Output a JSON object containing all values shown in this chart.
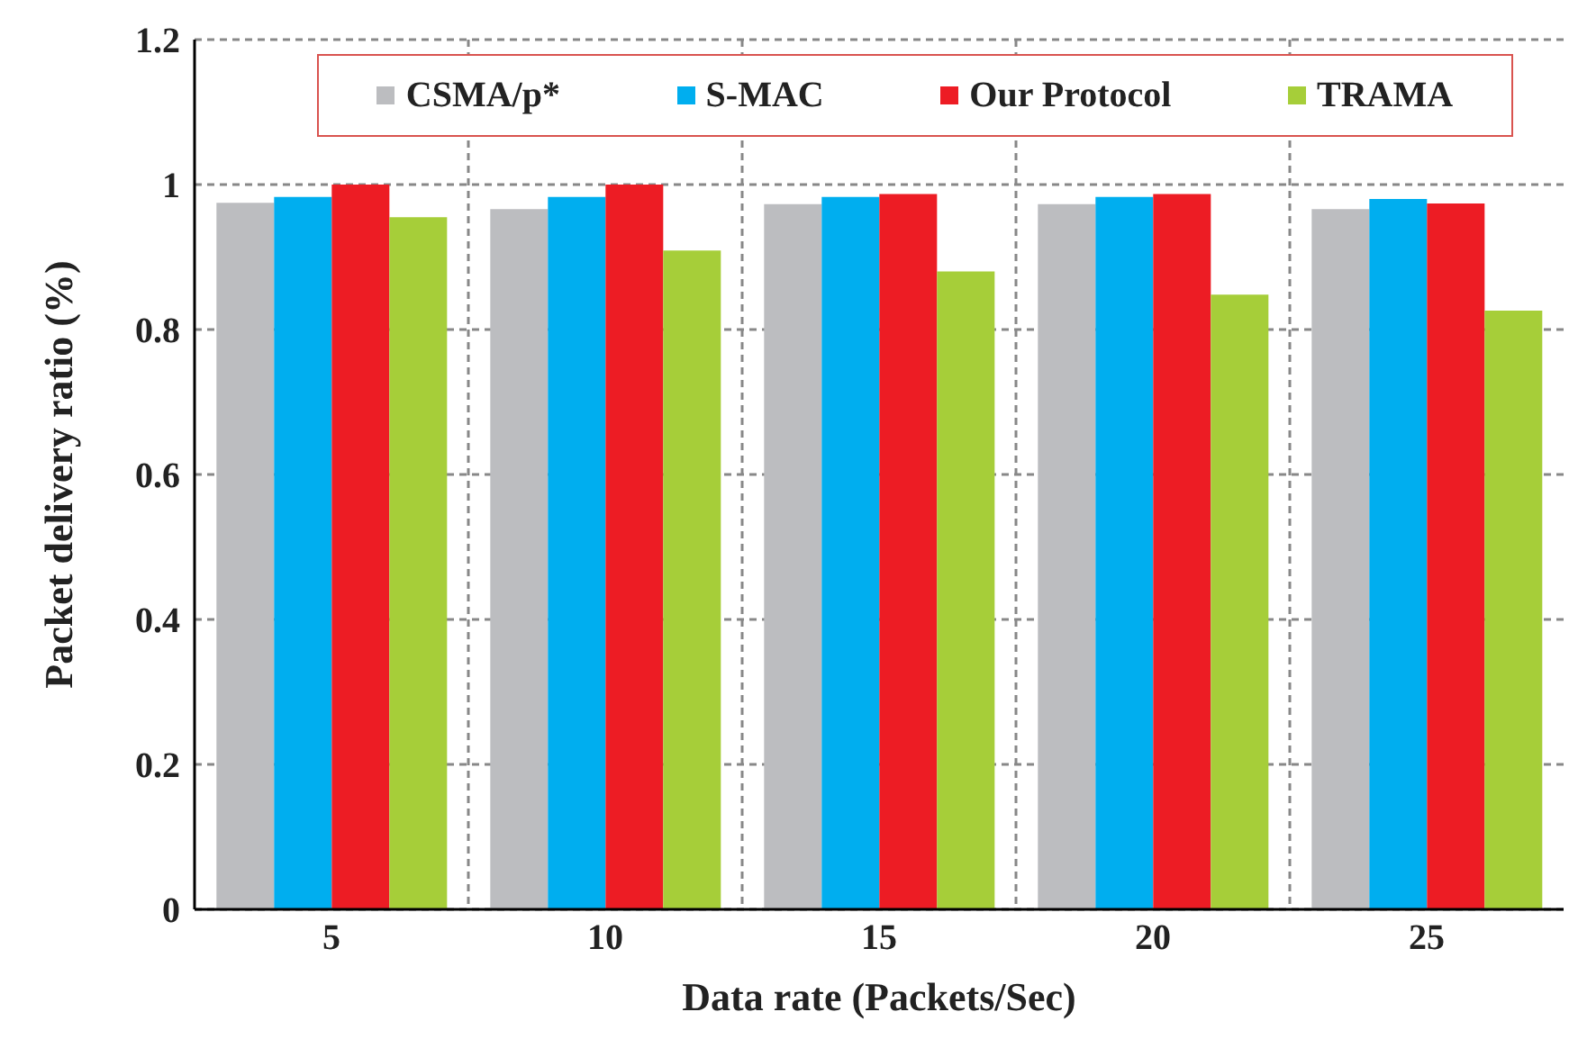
{
  "chart_data": {
    "type": "bar",
    "xlabel": "Data rate (Packets/Sec)",
    "ylabel": "Packet delivery ratio (%)",
    "categories": [
      "5",
      "10",
      "15",
      "20",
      "25"
    ],
    "series": [
      {
        "name": "CSMA/p*",
        "color": "#bcbdc0",
        "values": [
          0.975,
          0.966,
          0.973,
          0.973,
          0.966
        ]
      },
      {
        "name": "S-MAC",
        "color": "#00aeef",
        "values": [
          0.983,
          0.983,
          0.983,
          0.983,
          0.98
        ]
      },
      {
        "name": "Our Protocol",
        "color": "#ed1c24",
        "values": [
          1.0,
          1.0,
          0.987,
          0.987,
          0.974
        ]
      },
      {
        "name": "TRAMA",
        "color": "#a6ce39",
        "values": [
          0.955,
          0.909,
          0.88,
          0.848,
          0.826
        ]
      }
    ],
    "ylim": [
      0,
      1.2
    ],
    "yticks": [
      0,
      0.2,
      0.4,
      0.6,
      0.8,
      1,
      1.2
    ],
    "grid": true,
    "legend": "top"
  }
}
